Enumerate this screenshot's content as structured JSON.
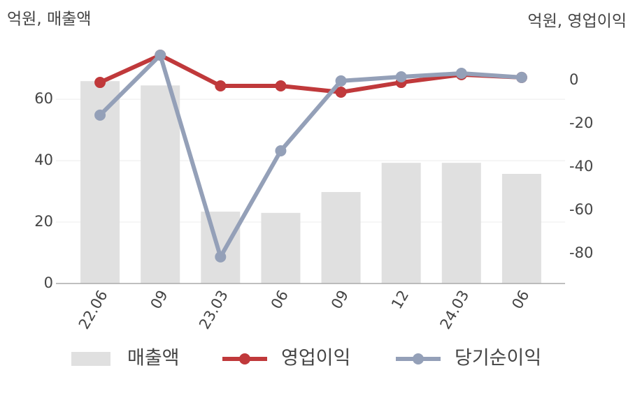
{
  "chart_data": {
    "type": "bar-line",
    "y_label": "억원, 매출액",
    "y2_label": "억원, 영업이익",
    "categories": [
      "22.06",
      "09",
      "23.03",
      "06",
      "09",
      "12",
      "24.03",
      "06"
    ],
    "series": [
      {
        "name": "매출액",
        "type": "bar",
        "color": "#e0e0e0",
        "values": [
          65.9,
          64.5,
          23.4,
          23.0,
          29.8,
          39.3,
          39.3,
          35.7
        ]
      },
      {
        "name": "영업이익",
        "type": "line",
        "axis": "y2",
        "color": "#c0393b",
        "values": [
          -1.0,
          11.6,
          -2.6,
          -2.6,
          -5.5,
          -1.0,
          2.6,
          1.3
        ]
      },
      {
        "name": "당기순이익",
        "type": "line",
        "axis": "y2",
        "color": "#94a0b8",
        "values": [
          -16.1,
          11.6,
          -81.6,
          -32.6,
          -0.3,
          1.6,
          3.2,
          1.3
        ]
      }
    ],
    "ylim": [
      0,
      76.4
    ],
    "yticks": [
      0,
      20,
      40,
      60
    ],
    "y2lim": [
      -93.9,
      14.5
    ],
    "y2ticks": [
      0,
      -20,
      -40,
      -60,
      -80
    ],
    "grid": true,
    "legend": "bottom"
  }
}
